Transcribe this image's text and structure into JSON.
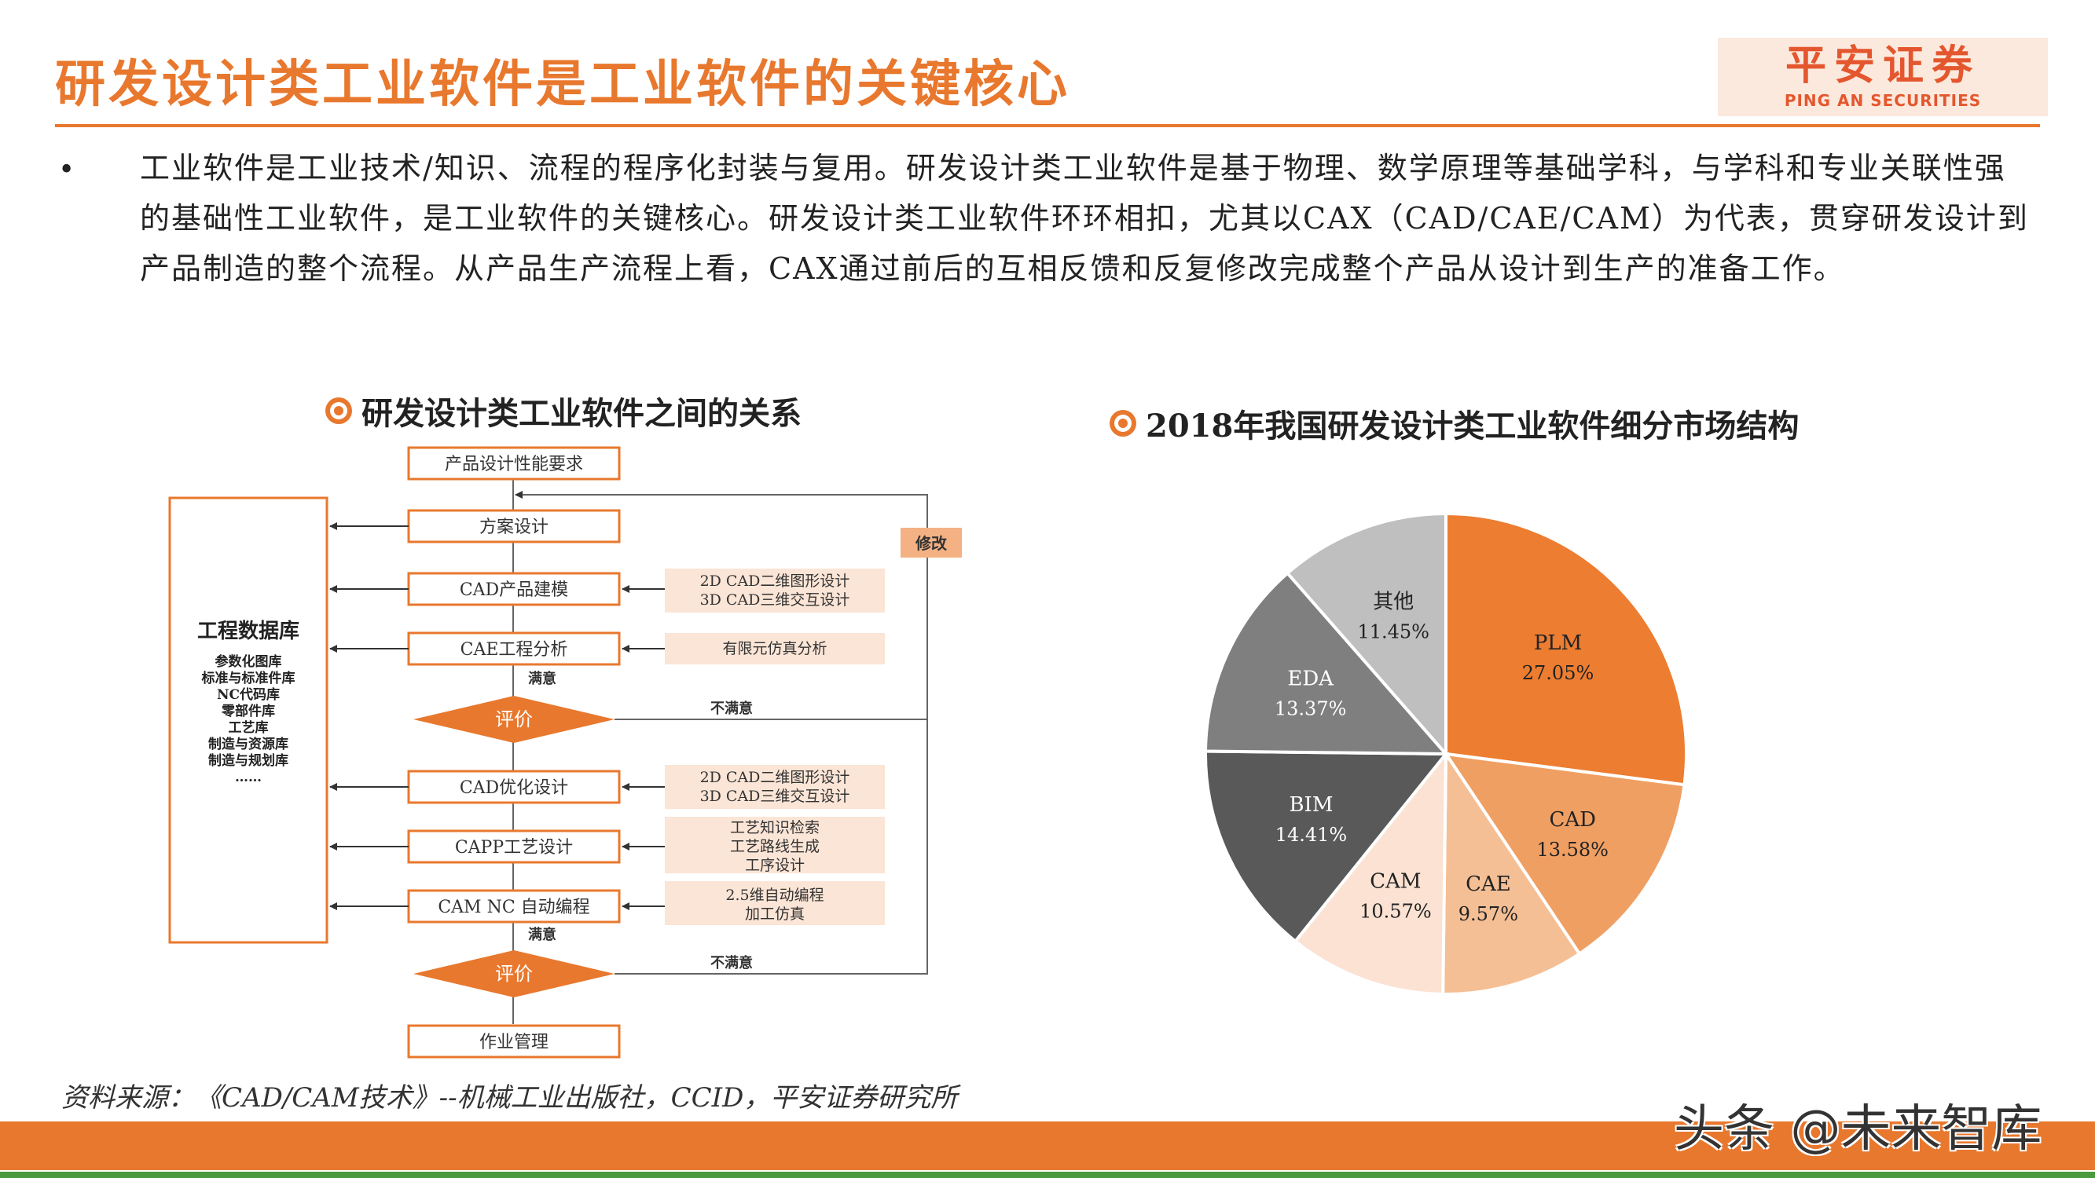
{
  "header": {
    "title": "研发设计类工业软件是工业软件的关键核心",
    "logo_cn": "平安证券",
    "logo_en": "PING AN SECURITIES"
  },
  "bullet": {
    "marker": "•",
    "text": "工业软件是工业技术/知识、流程的程序化封装与复用。研发设计类工业软件是基于物理、数学原理等基础学科，与学科和专业关联性强的基础性工业软件，是工业软件的关键核心。研发设计类工业软件环环相扣，尤其以CAX（CAD/CAE/CAM）为代表，贯穿研发设计到产品制造的整个流程。从产品生产流程上看，CAX通过前后的互相反馈和反复修改完成整个产品从设计到生产的准备工作。"
  },
  "diagram": {
    "heading": "研发设计类工业软件之间的关系",
    "steps": {
      "req": "产品设计性能要求",
      "plan": "方案设计",
      "cad_model": "CAD产品建模",
      "cae": "CAE工程分析",
      "eval1": "评价",
      "cad_opt": "CAD优化设计",
      "capp": "CAPP工艺设计",
      "cam": "CAM NC 自动编程",
      "eval2": "评价",
      "mgmt": "作业管理"
    },
    "notes": {
      "n1": [
        "2D CAD二维图形设计",
        "3D CAD三维交互设计"
      ],
      "n2": [
        "有限元仿真分析"
      ],
      "n3": [
        "2D CAD二维图形设计",
        "3D CAD三维交互设计"
      ],
      "n4": [
        "工艺知识检索",
        "工艺路线生成",
        "工序设计"
      ],
      "n5": [
        "2.5维自动编程",
        "加工仿真"
      ]
    },
    "labels": {
      "modify": "修改",
      "satisfied": "满意",
      "unsatisfied": "不满意"
    },
    "database": {
      "title": "工程数据库",
      "items": [
        "参数化图库",
        "标准与标准件库",
        "NC代码库",
        "零部件库",
        "工艺库",
        "制造与资源库",
        "制造与规划库",
        "……"
      ]
    }
  },
  "pie": {
    "heading": "2018年我国研发设计类工业软件细分市场结构"
  },
  "chart_data": {
    "type": "pie",
    "title": "2018年我国研发设计类工业软件细分市场结构",
    "slices": [
      {
        "label": "PLM",
        "value": 27.05,
        "text": "27.05%",
        "color": "#ED7D31",
        "text_color": "#222222"
      },
      {
        "label": "CAD",
        "value": 13.58,
        "text": "13.58%",
        "color": "#F09F63",
        "text_color": "#222222"
      },
      {
        "label": "CAE",
        "value": 9.57,
        "text": "9.57%",
        "color": "#F5BF95",
        "text_color": "#222222"
      },
      {
        "label": "CAM",
        "value": 10.57,
        "text": "10.57%",
        "color": "#FBE2D2",
        "text_color": "#222222"
      },
      {
        "label": "BIM",
        "value": 14.41,
        "text": "14.41%",
        "color": "#595959",
        "text_color": "#ffffff"
      },
      {
        "label": "EDA",
        "value": 13.37,
        "text": "13.37%",
        "color": "#7F7F7F",
        "text_color": "#ffffff"
      },
      {
        "label": "其他",
        "value": 11.45,
        "text": "11.45%",
        "color": "#BFBFBF",
        "text_color": "#222222"
      }
    ]
  },
  "source": "资料来源：《CAD/CAM技术》--机械工业出版社，CCID，平安证券研究所",
  "watermark": "头条 @未来智库",
  "colors": {
    "accent": "#E8782E",
    "note_fill": "#FBE5D6",
    "footer_green": "#4a9a3e"
  }
}
